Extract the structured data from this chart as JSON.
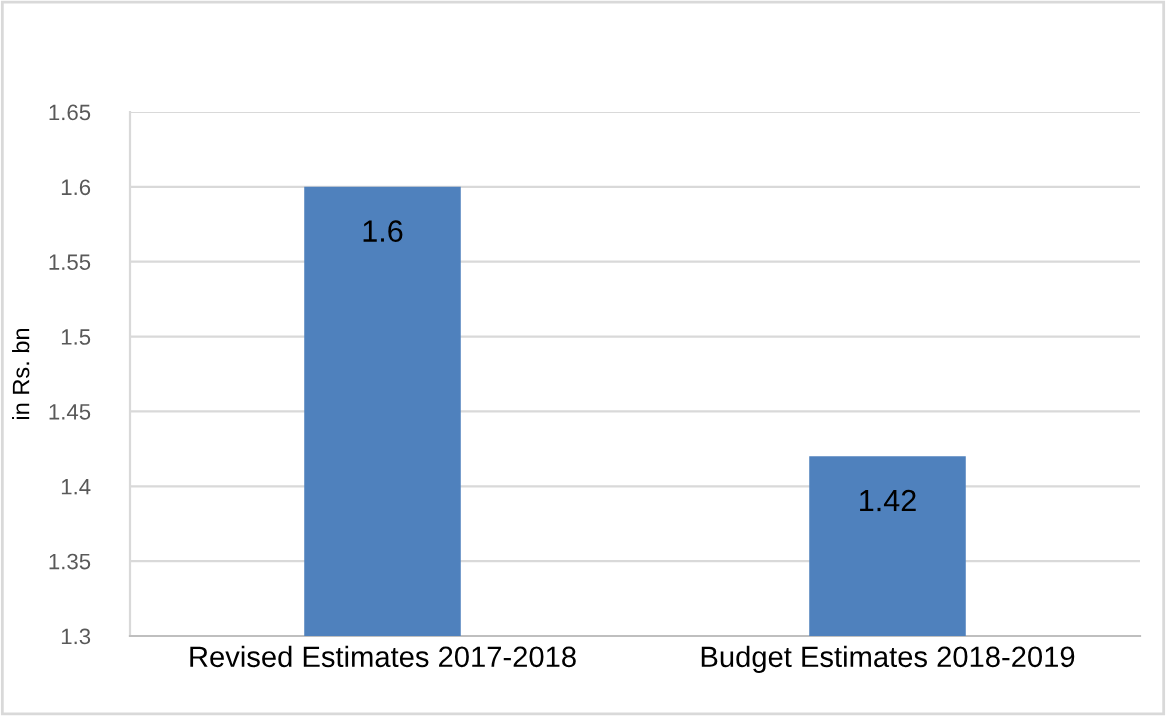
{
  "chart_data": {
    "type": "bar",
    "ylabel": "in Rs. bn",
    "categories": [
      "Revised Estimates 2017-2018",
      "Budget Estimates 2018-2019"
    ],
    "values": [
      1.6,
      1.42
    ],
    "color": "#4f81bd",
    "ylim": [
      1.3,
      1.65
    ],
    "yticks": [
      1.3,
      1.35,
      1.4,
      1.45,
      1.5,
      1.55,
      1.6,
      1.65
    ],
    "grid": "y",
    "data_labels": true
  }
}
